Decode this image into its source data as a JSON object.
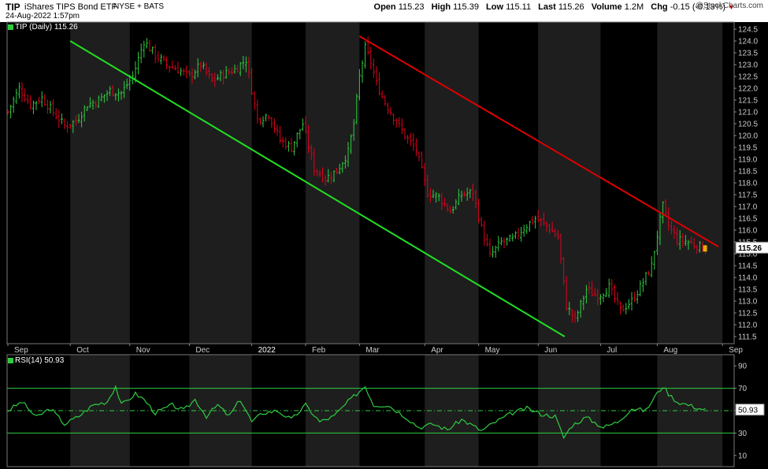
{
  "header": {
    "symbol": "TIP",
    "name": "iShares TIPS Bond ETF",
    "exchange": "NYSE + BATS",
    "datetime": "24-Aug-2022 1:57pm",
    "open_label": "Open",
    "open": "115.23",
    "high_label": "High",
    "high": "115.39",
    "low_label": "Low",
    "low": "115.11",
    "last_label": "Last",
    "last": "115.26",
    "volume_label": "Volume",
    "volume": "1.2M",
    "chg_label": "Chg",
    "chg": "-0.15 (-0.13%)",
    "logo": "@StockCharts.com"
  },
  "colors": {
    "up": "#2ecc40",
    "down": "#e0001b",
    "support": "#22dd22",
    "resistance": "#e00000",
    "rsi": "#2ecc40"
  },
  "chart_data": [
    {
      "type": "ohlc",
      "legend": "TIP (Daily) 115.26",
      "last_label": "115.26",
      "x_labels": [
        "Sep",
        "Oct",
        "Nov",
        "Dec",
        "2022",
        "Feb",
        "Mar",
        "Apr",
        "May",
        "Jun",
        "Jul",
        "Aug",
        "Sep"
      ],
      "y_ticks": [
        "124.5",
        "124.0",
        "123.5",
        "123.0",
        "122.5",
        "122.0",
        "121.5",
        "121.0",
        "120.5",
        "120.0",
        "119.5",
        "119.0",
        "118.5",
        "118.0",
        "117.5",
        "117.0",
        "116.5",
        "116.0",
        "115.5",
        "115.0",
        "114.5",
        "114.0",
        "113.5",
        "113.0",
        "112.5",
        "112.0",
        "111.5"
      ],
      "ylim": [
        111.2,
        124.8
      ],
      "x_months": [
        [
          "2021-09",
          0
        ],
        [
          "2021-10",
          22
        ],
        [
          "2021-11",
          43
        ],
        [
          "2021-12",
          64
        ],
        [
          "2022-01",
          86
        ],
        [
          "2022-02",
          105
        ],
        [
          "2022-03",
          124
        ],
        [
          "2022-04",
          147
        ],
        [
          "2022-05",
          166
        ],
        [
          "2022-06",
          187
        ],
        [
          "2022-07",
          209
        ],
        [
          "2022-08",
          229
        ],
        [
          "2022-09",
          252
        ]
      ],
      "anchors": [
        [
          0,
          121.0
        ],
        [
          4,
          122.0
        ],
        [
          8,
          121.3
        ],
        [
          12,
          121.6
        ],
        [
          16,
          121.0
        ],
        [
          20,
          120.4
        ],
        [
          24,
          120.6
        ],
        [
          28,
          121.3
        ],
        [
          32,
          121.5
        ],
        [
          36,
          121.9
        ],
        [
          40,
          121.8
        ],
        [
          44,
          122.5
        ],
        [
          48,
          124.0
        ],
        [
          52,
          123.4
        ],
        [
          56,
          123.0
        ],
        [
          60,
          122.8
        ],
        [
          64,
          122.5
        ],
        [
          68,
          123.0
        ],
        [
          72,
          122.3
        ],
        [
          76,
          122.6
        ],
        [
          80,
          122.8
        ],
        [
          84,
          123.2
        ],
        [
          88,
          120.7
        ],
        [
          92,
          120.9
        ],
        [
          96,
          119.8
        ],
        [
          100,
          119.5
        ],
        [
          104,
          120.5
        ],
        [
          108,
          118.6
        ],
        [
          112,
          118.2
        ],
        [
          116,
          118.5
        ],
        [
          120,
          119.3
        ],
        [
          122,
          120.5
        ],
        [
          124,
          122.5
        ],
        [
          126,
          123.7
        ],
        [
          128,
          123.1
        ],
        [
          130,
          122.2
        ],
        [
          133,
          121.4
        ],
        [
          136,
          120.8
        ],
        [
          140,
          120.0
        ],
        [
          144,
          119.4
        ],
        [
          148,
          117.6
        ],
        [
          152,
          117.4
        ],
        [
          156,
          116.8
        ],
        [
          160,
          117.5
        ],
        [
          164,
          117.6
        ],
        [
          167,
          116.1
        ],
        [
          170,
          114.9
        ],
        [
          174,
          115.5
        ],
        [
          178,
          115.6
        ],
        [
          182,
          116.1
        ],
        [
          186,
          116.5
        ],
        [
          190,
          116.2
        ],
        [
          194,
          115.7
        ],
        [
          197,
          112.8
        ],
        [
          200,
          112.2
        ],
        [
          204,
          113.5
        ],
        [
          208,
          113.2
        ],
        [
          212,
          113.6
        ],
        [
          216,
          112.6
        ],
        [
          220,
          113.0
        ],
        [
          224,
          113.8
        ],
        [
          227,
          114.5
        ],
        [
          229,
          115.8
        ],
        [
          231,
          117.0
        ],
        [
          233,
          116.2
        ],
        [
          236,
          115.6
        ],
        [
          240,
          115.5
        ],
        [
          244,
          115.3
        ],
        [
          246,
          115.26
        ]
      ],
      "trendlines": [
        {
          "name": "support",
          "from": [
            "2021-10-01",
            124.0
          ],
          "to": [
            "2022-06-14",
            111.5
          ]
        },
        {
          "name": "resistance",
          "from": [
            "2022-03-01",
            124.2
          ],
          "to": [
            "2022-08-31",
            115.3
          ]
        }
      ]
    },
    {
      "type": "line",
      "legend": "RSI(14) 50.93",
      "last_label": "50.93",
      "y_ticks": [
        "90",
        "70",
        "50",
        "30",
        "10"
      ],
      "ylim": [
        0,
        100
      ],
      "levels": [
        70,
        50,
        30
      ],
      "anchors": [
        [
          0,
          50
        ],
        [
          5,
          58
        ],
        [
          10,
          44
        ],
        [
          15,
          52
        ],
        [
          20,
          38
        ],
        [
          25,
          45
        ],
        [
          30,
          55
        ],
        [
          35,
          58
        ],
        [
          38,
          72
        ],
        [
          40,
          55
        ],
        [
          45,
          65
        ],
        [
          48,
          60
        ],
        [
          52,
          48
        ],
        [
          58,
          55
        ],
        [
          62,
          50
        ],
        [
          66,
          60
        ],
        [
          70,
          45
        ],
        [
          74,
          55
        ],
        [
          78,
          45
        ],
        [
          82,
          60
        ],
        [
          86,
          40
        ],
        [
          90,
          48
        ],
        [
          95,
          50
        ],
        [
          100,
          42
        ],
        [
          105,
          55
        ],
        [
          110,
          40
        ],
        [
          115,
          45
        ],
        [
          120,
          58
        ],
        [
          123,
          65
        ],
        [
          126,
          72
        ],
        [
          129,
          55
        ],
        [
          134,
          55
        ],
        [
          140,
          45
        ],
        [
          145,
          35
        ],
        [
          150,
          38
        ],
        [
          155,
          33
        ],
        [
          160,
          42
        ],
        [
          163,
          38
        ],
        [
          167,
          32
        ],
        [
          172,
          40
        ],
        [
          178,
          48
        ],
        [
          183,
          52
        ],
        [
          188,
          47
        ],
        [
          193,
          45
        ],
        [
          196,
          26
        ],
        [
          199,
          37
        ],
        [
          204,
          44
        ],
        [
          210,
          35
        ],
        [
          215,
          40
        ],
        [
          220,
          52
        ],
        [
          225,
          50
        ],
        [
          228,
          62
        ],
        [
          231,
          72
        ],
        [
          233,
          65
        ],
        [
          236,
          58
        ],
        [
          240,
          55
        ],
        [
          244,
          52
        ],
        [
          246,
          50.93
        ]
      ]
    }
  ]
}
